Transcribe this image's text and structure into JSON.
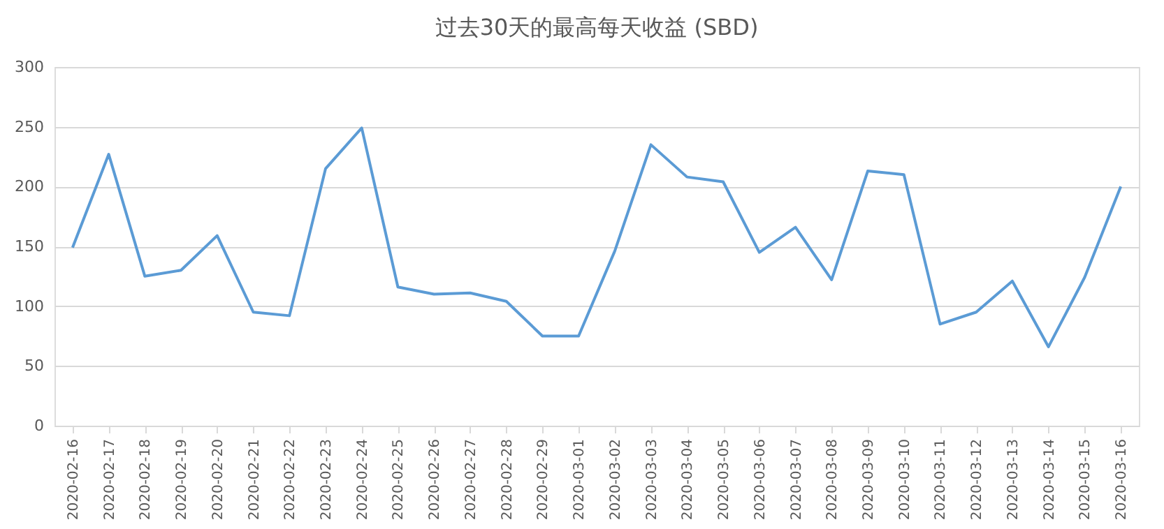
{
  "chart_data": {
    "type": "line",
    "title": "过去30天的最高每天收益 (SBD)",
    "categories": [
      "2020-02-16",
      "2020-02-17",
      "2020-02-18",
      "2020-02-19",
      "2020-02-20",
      "2020-02-21",
      "2020-02-22",
      "2020-02-23",
      "2020-02-24",
      "2020-02-25",
      "2020-02-26",
      "2020-02-27",
      "2020-02-28",
      "2020-02-29",
      "2020-03-01",
      "2020-03-02",
      "2020-03-03",
      "2020-03-04",
      "2020-03-05",
      "2020-03-06",
      "2020-03-07",
      "2020-03-08",
      "2020-03-09",
      "2020-03-10",
      "2020-03-11",
      "2020-03-12",
      "2020-03-13",
      "2020-03-14",
      "2020-03-15",
      "2020-03-16"
    ],
    "series": [
      {
        "color": "#5b9bd5",
        "values": [
          149,
          227,
          125,
          130,
          159,
          95,
          92,
          215,
          249,
          116,
          110,
          111,
          104,
          75,
          75,
          146,
          235,
          208,
          204,
          145,
          166,
          122,
          213,
          210,
          85,
          95,
          121,
          66,
          124,
          200
        ]
      }
    ],
    "ylim": [
      0,
      300
    ],
    "yticks": [
      0,
      50,
      100,
      150,
      200,
      250,
      300
    ],
    "grid": "y",
    "legend": false,
    "marker": "none",
    "line_style": "solid"
  }
}
